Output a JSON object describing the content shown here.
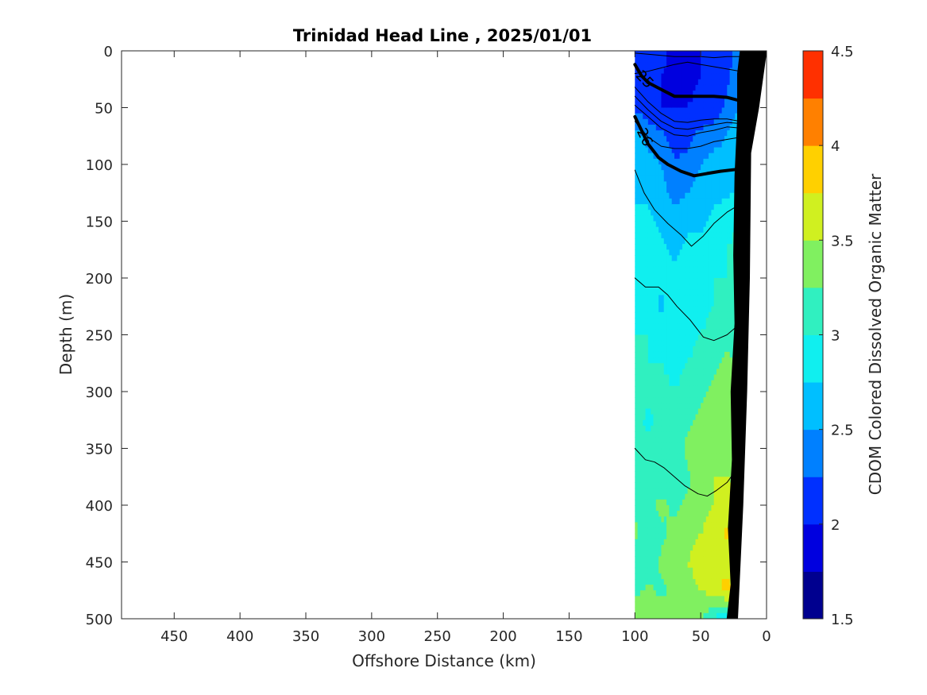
{
  "chart_data": {
    "type": "heatmap",
    "title": "Trinidad Head Line , 2025/01/01",
    "xlabel": "Offshore Distance (km)",
    "ylabel": "Depth (m)",
    "xlim": [
      490,
      0
    ],
    "ylim": [
      0,
      500
    ],
    "x_reversed": true,
    "y_reversed": true,
    "x_ticks": [
      450,
      400,
      350,
      300,
      250,
      200,
      150,
      100,
      50,
      0
    ],
    "y_ticks": [
      0,
      50,
      100,
      150,
      200,
      250,
      300,
      350,
      400,
      450,
      500
    ],
    "colorbar": {
      "label": "CDOM Colored Dissolved Organic Matter",
      "range": [
        1.5,
        4.5
      ],
      "ticks": [
        1.5,
        2,
        2.5,
        3,
        3.5,
        4,
        4.5
      ],
      "levels": [
        1.5,
        1.75,
        2.0,
        2.25,
        2.5,
        2.75,
        3.0,
        3.25,
        3.5,
        3.75,
        4.0,
        4.25,
        4.5
      ],
      "colors": [
        "#00008f",
        "#0000df",
        "#0030ff",
        "#0080ff",
        "#00bfff",
        "#10efef",
        "#30f0c0",
        "#80f060",
        "#d0f020",
        "#ffd000",
        "#ff8000",
        "#ff3000",
        "#d00000"
      ]
    },
    "data_extent_km": [
      100,
      0
    ],
    "grid_x_km": [
      100,
      90,
      80,
      70,
      60,
      50,
      40,
      30,
      20
    ],
    "grid_depth_m": [
      0,
      25,
      50,
      75,
      100,
      125,
      150,
      175,
      200,
      225,
      250,
      275,
      300,
      325,
      350,
      375,
      400,
      425,
      450,
      475,
      500
    ],
    "cdom": [
      [
        2.1,
        2.0,
        2.1,
        1.9,
        1.9,
        2.0,
        2.2,
        2.2,
        2.3
      ],
      [
        2.1,
        2.1,
        2.0,
        1.9,
        1.9,
        2.0,
        2.1,
        2.2,
        2.4
      ],
      [
        2.2,
        2.1,
        2.0,
        2.0,
        2.0,
        2.1,
        2.1,
        2.3,
        2.5
      ],
      [
        2.6,
        2.4,
        2.3,
        2.1,
        2.2,
        2.3,
        2.4,
        2.5,
        2.7
      ],
      [
        2.7,
        2.6,
        2.5,
        2.3,
        2.3,
        2.5,
        2.6,
        2.6,
        2.7
      ],
      [
        2.7,
        2.7,
        2.6,
        2.4,
        2.5,
        2.6,
        2.7,
        2.7,
        2.8
      ],
      [
        2.8,
        2.8,
        2.7,
        2.6,
        2.7,
        2.7,
        2.8,
        2.9,
        3.0
      ],
      [
        2.9,
        2.8,
        2.8,
        2.7,
        2.8,
        2.8,
        2.9,
        3.0,
        3.1
      ],
      [
        3.0,
        2.9,
        2.8,
        2.8,
        2.8,
        2.9,
        3.0,
        3.0,
        3.2
      ],
      [
        3.0,
        2.9,
        2.7,
        2.9,
        2.9,
        2.9,
        3.0,
        3.1,
        3.1
      ],
      [
        3.0,
        3.0,
        2.9,
        2.9,
        2.9,
        3.0,
        3.1,
        3.2,
        3.0
      ],
      [
        3.1,
        3.0,
        3.0,
        2.9,
        3.0,
        3.1,
        3.2,
        3.3,
        3.2
      ],
      [
        3.1,
        3.1,
        3.1,
        3.0,
        3.1,
        3.2,
        3.3,
        3.3,
        3.3
      ],
      [
        3.2,
        2.9,
        3.1,
        3.1,
        3.2,
        3.3,
        3.3,
        3.4,
        3.4
      ],
      [
        3.0,
        3.1,
        3.2,
        3.1,
        3.3,
        3.5,
        3.4,
        3.4,
        3.4
      ],
      [
        3.2,
        3.2,
        3.1,
        3.2,
        3.2,
        3.4,
        3.5,
        3.5,
        3.4
      ],
      [
        3.2,
        3.2,
        3.3,
        3.2,
        3.3,
        3.4,
        3.5,
        3.6,
        3.5
      ],
      [
        3.3,
        3.1,
        3.2,
        3.3,
        3.4,
        3.5,
        3.6,
        3.8,
        3.6
      ],
      [
        3.1,
        3.0,
        3.3,
        3.4,
        3.5,
        3.6,
        3.7,
        3.6,
        3.6
      ],
      [
        3.2,
        3.3,
        3.2,
        3.3,
        3.4,
        3.5,
        3.6,
        3.9,
        3.5
      ],
      [
        3.4,
        3.3,
        3.4,
        3.5,
        3.4,
        3.3,
        3.0,
        2.6,
        3.2
      ]
    ],
    "contours": [
      {
        "level": "25",
        "bold": true,
        "labeled": true,
        "points": [
          [
            100,
            12
          ],
          [
            95,
            22
          ],
          [
            90,
            28
          ],
          [
            80,
            34
          ],
          [
            70,
            40
          ],
          [
            55,
            40
          ],
          [
            40,
            40
          ],
          [
            30,
            41
          ],
          [
            20,
            44
          ]
        ]
      },
      {
        "level": "26",
        "bold": true,
        "labeled": true,
        "points": [
          [
            100,
            58
          ],
          [
            95,
            70
          ],
          [
            90,
            82
          ],
          [
            82,
            94
          ],
          [
            75,
            100
          ],
          [
            65,
            106
          ],
          [
            55,
            110
          ],
          [
            45,
            108
          ],
          [
            35,
            106
          ],
          [
            20,
            104
          ]
        ]
      },
      {
        "level": "",
        "bold": false,
        "labeled": false,
        "points": [
          [
            100,
            2
          ],
          [
            90,
            3
          ],
          [
            80,
            4
          ],
          [
            70,
            5
          ],
          [
            60,
            5
          ],
          [
            50,
            5
          ],
          [
            40,
            6
          ],
          [
            30,
            5
          ],
          [
            20,
            5
          ]
        ]
      },
      {
        "level": "",
        "bold": false,
        "labeled": false,
        "points": [
          [
            100,
            20
          ],
          [
            90,
            18
          ],
          [
            80,
            15
          ],
          [
            70,
            12
          ],
          [
            60,
            10
          ],
          [
            50,
            12
          ],
          [
            40,
            14
          ],
          [
            30,
            16
          ],
          [
            20,
            18
          ]
        ]
      },
      {
        "level": "",
        "bold": false,
        "labeled": false,
        "points": [
          [
            100,
            32
          ],
          [
            90,
            45
          ],
          [
            80,
            55
          ],
          [
            70,
            62
          ],
          [
            60,
            63
          ],
          [
            50,
            61
          ],
          [
            40,
            60
          ],
          [
            30,
            60
          ],
          [
            20,
            62
          ]
        ]
      },
      {
        "level": "",
        "bold": false,
        "labeled": false,
        "points": [
          [
            100,
            40
          ],
          [
            90,
            52
          ],
          [
            80,
            62
          ],
          [
            70,
            68
          ],
          [
            60,
            69
          ],
          [
            50,
            67
          ],
          [
            40,
            65
          ],
          [
            30,
            63
          ],
          [
            20,
            64
          ]
        ]
      },
      {
        "level": "",
        "bold": false,
        "labeled": false,
        "points": [
          [
            100,
            48
          ],
          [
            90,
            58
          ],
          [
            80,
            68
          ],
          [
            70,
            74
          ],
          [
            60,
            75
          ],
          [
            50,
            72
          ],
          [
            40,
            70
          ],
          [
            30,
            67
          ],
          [
            20,
            68
          ]
        ]
      },
      {
        "level": "",
        "bold": false,
        "labeled": false,
        "points": [
          [
            100,
            62
          ],
          [
            90,
            76
          ],
          [
            80,
            84
          ],
          [
            70,
            86
          ],
          [
            60,
            86
          ],
          [
            50,
            84
          ],
          [
            40,
            80
          ],
          [
            30,
            78
          ],
          [
            20,
            76
          ]
        ]
      },
      {
        "level": "",
        "bold": false,
        "labeled": false,
        "points": [
          [
            100,
            105
          ],
          [
            93,
            125
          ],
          [
            85,
            140
          ],
          [
            75,
            152
          ],
          [
            65,
            162
          ],
          [
            57,
            172
          ],
          [
            48,
            163
          ],
          [
            40,
            152
          ],
          [
            30,
            142
          ],
          [
            20,
            135
          ]
        ]
      },
      {
        "level": "",
        "bold": false,
        "labeled": false,
        "points": [
          [
            100,
            200
          ],
          [
            92,
            208
          ],
          [
            82,
            208
          ],
          [
            75,
            215
          ],
          [
            68,
            225
          ],
          [
            58,
            237
          ],
          [
            48,
            252
          ],
          [
            40,
            255
          ],
          [
            30,
            250
          ],
          [
            20,
            240
          ]
        ]
      },
      {
        "level": "",
        "bold": false,
        "labeled": false,
        "points": [
          [
            100,
            350
          ],
          [
            92,
            360
          ],
          [
            85,
            362
          ],
          [
            78,
            367
          ],
          [
            70,
            375
          ],
          [
            62,
            383
          ],
          [
            52,
            390
          ],
          [
            45,
            392
          ],
          [
            38,
            387
          ],
          [
            30,
            380
          ],
          [
            25,
            372
          ]
        ]
      }
    ],
    "bathymetry_km_m": [
      [
        20,
        0
      ],
      [
        22,
        20
      ],
      [
        22,
        60
      ],
      [
        24,
        110
      ],
      [
        25,
        180
      ],
      [
        24,
        240
      ],
      [
        27,
        300
      ],
      [
        26,
        360
      ],
      [
        29,
        420
      ],
      [
        27,
        470
      ],
      [
        30,
        500
      ]
    ],
    "bottom_edge_km_m": [
      [
        0,
        0
      ],
      [
        6,
        50
      ],
      [
        12,
        90
      ],
      [
        13,
        200
      ],
      [
        15,
        300
      ],
      [
        18,
        400
      ],
      [
        20,
        450
      ],
      [
        22,
        500
      ]
    ],
    "grid": false,
    "legend": "none"
  }
}
